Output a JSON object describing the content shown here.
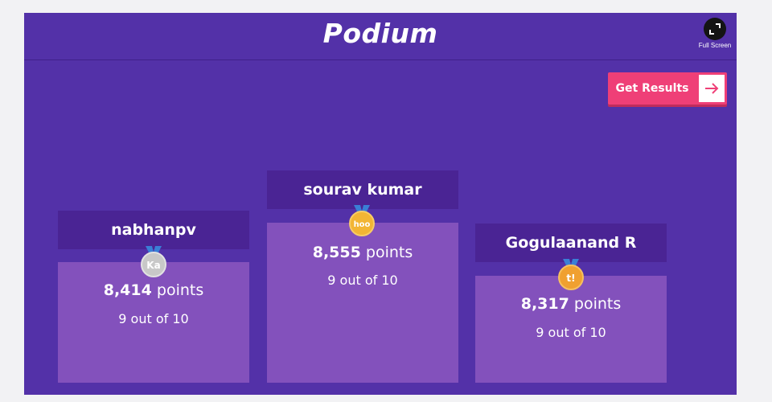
{
  "header": {
    "title": "Podium",
    "fullscreen_label": "Full Screen"
  },
  "actions": {
    "get_results_label": "Get Results"
  },
  "podium": {
    "second": {
      "name": "nabhanpv",
      "points_value": "8,414",
      "points_unit": "points",
      "score": "9 out of 10",
      "badge": "Ka",
      "medal": "silver",
      "medal_color": "#c8c8c8"
    },
    "first": {
      "name": "sourav kumar",
      "points_value": "8,555",
      "points_unit": "points",
      "score": "9 out of 10",
      "badge": "hoo",
      "medal": "gold",
      "medal_color": "#f2b534"
    },
    "third": {
      "name": "Gogulaanand R",
      "points_value": "8,317",
      "points_unit": "points",
      "score": "9 out of 10",
      "badge": "t!",
      "medal": "bronze",
      "medal_color": "#f0a030"
    }
  },
  "colors": {
    "background": "#5331a8",
    "name_bar": "#4a2494",
    "podium_box": "#8351bc",
    "accent_button": "#ef3f77"
  }
}
